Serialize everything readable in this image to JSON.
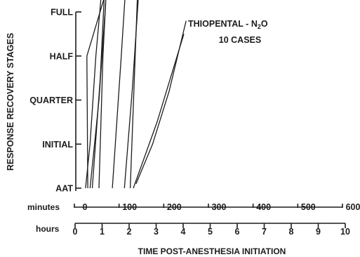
{
  "chart_data": {
    "type": "line",
    "title": "THIOPENTAL - N",
    "title_subscript": "2",
    "title_suffix": "O",
    "subtitle": "10 CASES",
    "ylabel": "RESPONSE   RECOVERY   STAGES",
    "xlabel": "TIME   POST-ANESTHESIA   INITIATION",
    "y_categories": [
      "AAT",
      "INITIAL",
      "QUARTER",
      "HALF",
      "FULL"
    ],
    "x_minutes": {
      "label": "minutes",
      "ticks": [
        "0",
        "100",
        "200",
        "300",
        "400",
        "500",
        "600"
      ],
      "range": [
        0,
        600
      ]
    },
    "x_hours": {
      "label": "hours",
      "ticks": [
        "0",
        "1",
        "2",
        "3",
        "4",
        "5",
        "6",
        "7",
        "8",
        "9",
        "10"
      ],
      "range": [
        0,
        10
      ]
    },
    "grid": false,
    "series": [
      {
        "values": [
          [
            25,
            0
          ],
          [
            35,
            1
          ],
          [
            48,
            3
          ],
          [
            62,
            4.6
          ]
        ]
      },
      {
        "values": [
          [
            30,
            0
          ],
          [
            28,
            3
          ],
          [
            75,
            4.6
          ]
        ]
      },
      {
        "values": [
          [
            35,
            0
          ],
          [
            45,
            1
          ],
          [
            55,
            2
          ],
          [
            70,
            4.2
          ]
        ]
      },
      {
        "values": [
          [
            40,
            0
          ],
          [
            58,
            2.5
          ],
          [
            68,
            4.6
          ]
        ]
      },
      {
        "values": [
          [
            55,
            0
          ],
          [
            64,
            3
          ],
          [
            72,
            4.6
          ]
        ]
      },
      {
        "values": [
          [
            85,
            0
          ],
          [
            105,
            3
          ],
          [
            115,
            4.6
          ]
        ]
      },
      {
        "values": [
          [
            112,
            0
          ],
          [
            130,
            2.3
          ],
          [
            145,
            4.6
          ]
        ]
      },
      {
        "values": [
          [
            125,
            0
          ],
          [
            142,
            4.6
          ]
        ]
      },
      {
        "values": [
          [
            138,
            0.1
          ],
          [
            175,
            1
          ],
          [
            212,
            2.2
          ],
          [
            250,
            3.8
          ]
        ]
      },
      {
        "values": [
          [
            132,
            0
          ],
          [
            185,
            1.5
          ],
          [
            245,
            3.5
          ]
        ]
      }
    ]
  }
}
